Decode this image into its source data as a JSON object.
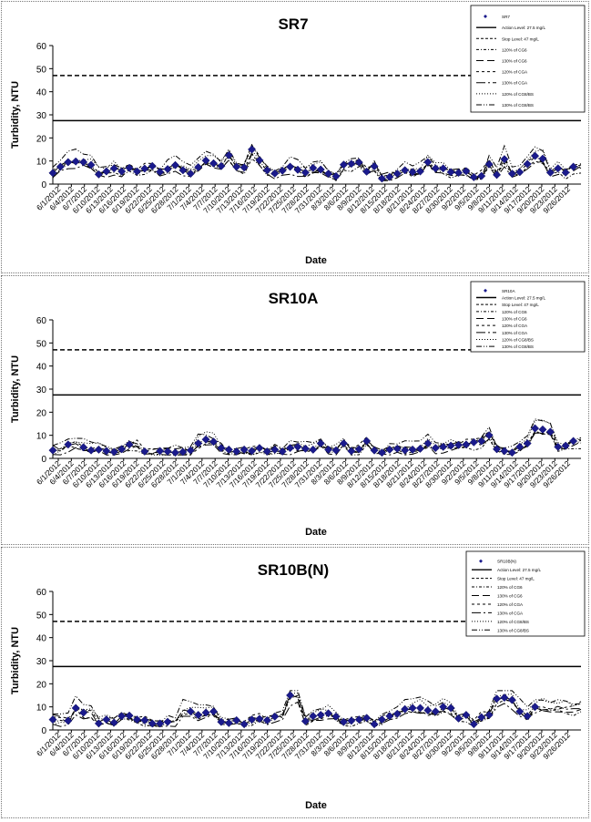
{
  "chart_data": [
    {
      "type": "line",
      "title": "SR7",
      "xlabel": "Date",
      "ylabel": "Turbidity, NTU",
      "ylim": [
        0,
        60
      ],
      "yticks": [
        0,
        10,
        20,
        30,
        40,
        50,
        60
      ],
      "grid": false,
      "legend_position": "top-right",
      "x_tick_labels": [
        "6/1/2012",
        "6/4/2012",
        "6/7/2012",
        "6/10/2012",
        "6/13/2012",
        "6/16/2012",
        "6/19/2012",
        "6/22/2012",
        "6/25/2012",
        "6/28/2012",
        "7/1/2012",
        "7/4/2012",
        "7/7/2012",
        "7/10/2012",
        "7/13/2012",
        "7/16/2012",
        "7/19/2012",
        "7/22/2012",
        "7/25/2012",
        "7/28/2012",
        "7/31/2012",
        "8/3/2012",
        "8/6/2012",
        "8/9/2012",
        "8/12/2012",
        "8/15/2012",
        "8/18/2012",
        "8/21/2012",
        "8/24/2012",
        "8/27/2012",
        "8/30/2012",
        "9/2/2012",
        "9/5/2012",
        "9/8/2012",
        "9/11/2012",
        "9/14/2012",
        "9/17/2012",
        "9/20/2012",
        "9/23/2012",
        "9/26/2012"
      ],
      "observed": {
        "name": "SR7",
        "points": [
          [
            0,
            4.8
          ],
          [
            1,
            7.5
          ],
          [
            2,
            9.5
          ],
          [
            3,
            9.8
          ],
          [
            4,
            9.5
          ],
          [
            5,
            8.3
          ],
          [
            6,
            4.2
          ],
          [
            7,
            5.5
          ],
          [
            8,
            6.8
          ],
          [
            9,
            5.5
          ],
          [
            10,
            7.0
          ],
          [
            11,
            5.5
          ],
          [
            12,
            6.7
          ],
          [
            13,
            7.8
          ],
          [
            14,
            5.3
          ],
          [
            15,
            6.5
          ],
          [
            16,
            8.2
          ],
          [
            17,
            6.0
          ],
          [
            18,
            4.5
          ],
          [
            19,
            7.3
          ],
          [
            20,
            10.2
          ],
          [
            21,
            9.0
          ],
          [
            22,
            7.8
          ],
          [
            23,
            12.5
          ],
          [
            24,
            7.5
          ],
          [
            25,
            7.2
          ],
          [
            26,
            15.0
          ],
          [
            27,
            10.3
          ],
          [
            28,
            6.0
          ],
          [
            29,
            4.6
          ],
          [
            30,
            5.8
          ],
          [
            31,
            7.5
          ],
          [
            32,
            6.2
          ],
          [
            33,
            5.0
          ],
          [
            34,
            7.0
          ],
          [
            35,
            6.3
          ],
          [
            36,
            4.5
          ],
          [
            37,
            3.4
          ],
          [
            38,
            8.4
          ],
          [
            39,
            8.8
          ],
          [
            40,
            9.4
          ],
          [
            41,
            5.4
          ],
          [
            42,
            7.7
          ],
          [
            43,
            2.4
          ],
          [
            44,
            3.1
          ],
          [
            45,
            4.5
          ],
          [
            46,
            6.0
          ],
          [
            47,
            5.2
          ],
          [
            48,
            5.5
          ],
          [
            49,
            9.5
          ],
          [
            50,
            6.8
          ],
          [
            51,
            6.8
          ],
          [
            52,
            5.2
          ],
          [
            53,
            4.9
          ],
          [
            54,
            5.6
          ],
          [
            55,
            3.0
          ],
          [
            56,
            3.5
          ],
          [
            57,
            8.6
          ],
          [
            58,
            4.0
          ],
          [
            59,
            10.8
          ],
          [
            60,
            4.5
          ],
          [
            61,
            5.2
          ],
          [
            62,
            8.7
          ],
          [
            63,
            12.2
          ],
          [
            64,
            11.0
          ],
          [
            65,
            5.0
          ],
          [
            66,
            6.8
          ],
          [
            67,
            5.0
          ],
          [
            68,
            7.5
          ]
        ]
      },
      "reference_lines": [
        {
          "name": "Action Level: 27.5 mg/L",
          "y": 27.5,
          "style": "solid"
        },
        {
          "name": "Stop Level: 47 mg/L",
          "y": 47,
          "style": "dashed"
        }
      ],
      "curve_names": [
        "120% of CG6",
        "130% of CG6",
        "120% of CGA",
        "130% of CGA",
        "120% of CG8/BS",
        "130% of CG8/BS"
      ]
    },
    {
      "type": "line",
      "title": "SR10A",
      "xlabel": "Date",
      "ylabel": "Turbidity, NTU",
      "ylim": [
        0,
        60
      ],
      "yticks": [
        0,
        10,
        20,
        30,
        40,
        50,
        60
      ],
      "grid": false,
      "legend_position": "top-right",
      "x_tick_labels": [
        "6/1/2012",
        "6/4/2012",
        "6/7/2012",
        "6/10/2012",
        "6/13/2012",
        "6/16/2012",
        "6/19/2012",
        "6/22/2012",
        "6/25/2012",
        "6/28/2012",
        "7/1/2012",
        "7/4/2012",
        "7/7/2012",
        "7/10/2012",
        "7/13/2012",
        "7/16/2012",
        "7/19/2012",
        "7/22/2012",
        "7/25/2012",
        "7/28/2012",
        "7/31/2012",
        "8/3/2012",
        "8/6/2012",
        "8/9/2012",
        "8/12/2012",
        "8/15/2012",
        "8/18/2012",
        "8/21/2012",
        "8/24/2012",
        "8/27/2012",
        "8/30/2012",
        "9/2/2012",
        "9/5/2012",
        "9/8/2012",
        "9/11/2012",
        "9/14/2012",
        "9/17/2012",
        "9/20/2012",
        "9/23/2012",
        "9/26/2012"
      ],
      "observed": {
        "name": "SR10A",
        "points": [
          [
            0,
            3.5
          ],
          [
            2,
            6.0
          ],
          [
            4,
            4.8
          ],
          [
            5,
            3.5
          ],
          [
            6,
            3.8
          ],
          [
            7,
            3.2
          ],
          [
            8,
            2.8
          ],
          [
            9,
            4.0
          ],
          [
            10,
            6.0
          ],
          [
            12,
            3.0
          ],
          [
            14,
            3.2
          ],
          [
            15,
            3.0
          ],
          [
            16,
            2.5
          ],
          [
            17,
            2.8
          ],
          [
            18,
            3.5
          ],
          [
            19,
            6.5
          ],
          [
            20,
            8.2
          ],
          [
            21,
            7.2
          ],
          [
            22,
            4.5
          ],
          [
            23,
            3.8
          ],
          [
            24,
            3.0
          ],
          [
            25,
            3.8
          ],
          [
            26,
            3.2
          ],
          [
            27,
            4.5
          ],
          [
            28,
            3.0
          ],
          [
            29,
            3.8
          ],
          [
            30,
            3.0
          ],
          [
            31,
            4.5
          ],
          [
            32,
            5.0
          ],
          [
            33,
            4.2
          ],
          [
            34,
            3.8
          ],
          [
            35,
            6.5
          ],
          [
            36,
            3.8
          ],
          [
            37,
            3.5
          ],
          [
            38,
            6.5
          ],
          [
            39,
            3.2
          ],
          [
            40,
            4.0
          ],
          [
            41,
            7.5
          ],
          [
            42,
            3.5
          ],
          [
            43,
            2.5
          ],
          [
            44,
            3.8
          ],
          [
            45,
            4.2
          ],
          [
            46,
            3.5
          ],
          [
            47,
            3.8
          ],
          [
            48,
            4.2
          ],
          [
            49,
            6.5
          ],
          [
            50,
            4.5
          ],
          [
            51,
            5.0
          ],
          [
            52,
            5.5
          ],
          [
            53,
            5.8
          ],
          [
            54,
            6.0
          ],
          [
            55,
            7.0
          ],
          [
            56,
            7.5
          ],
          [
            57,
            10.0
          ],
          [
            58,
            4.0
          ],
          [
            59,
            3.2
          ],
          [
            60,
            2.5
          ],
          [
            61,
            5.0
          ],
          [
            62,
            6.5
          ],
          [
            63,
            13.0
          ],
          [
            64,
            12.5
          ],
          [
            65,
            11.5
          ],
          [
            66,
            5.0
          ],
          [
            67,
            5.5
          ],
          [
            68,
            7.5
          ]
        ]
      },
      "reference_lines": [
        {
          "name": "Action Level: 27.5 mg/L",
          "y": 27.5,
          "style": "solid"
        },
        {
          "name": "Stop Level: 47 mg/L",
          "y": 47,
          "style": "dashed"
        }
      ],
      "curve_names": [
        "120% of CG6",
        "130% of CG6",
        "120% of CGA",
        "130% of CGA",
        "120% of CG8/BS",
        "130% of CG8/BS"
      ]
    },
    {
      "type": "line",
      "title": "SR10B(N)",
      "xlabel": "Date",
      "ylabel": "Turbidity, NTU",
      "ylim": [
        0,
        60
      ],
      "yticks": [
        0,
        10,
        20,
        30,
        40,
        50,
        60
      ],
      "grid": false,
      "legend_position": "top-right",
      "x_tick_labels": [
        "6/1/2012",
        "6/4/2012",
        "6/7/2012",
        "6/10/2012",
        "6/13/2012",
        "6/16/2012",
        "6/19/2012",
        "6/22/2012",
        "6/25/2012",
        "6/28/2012",
        "7/1/2012",
        "7/4/2012",
        "7/7/2012",
        "7/10/2012",
        "7/13/2012",
        "7/16/2012",
        "7/19/2012",
        "7/22/2012",
        "7/25/2012",
        "7/28/2012",
        "7/31/2012",
        "8/3/2012",
        "8/6/2012",
        "8/9/2012",
        "8/12/2012",
        "8/15/2012",
        "8/18/2012",
        "8/21/2012",
        "8/24/2012",
        "8/27/2012",
        "8/30/2012",
        "9/2/2012",
        "9/5/2012",
        "9/8/2012",
        "9/11/2012",
        "9/14/2012",
        "9/17/2012",
        "9/20/2012",
        "9/23/2012",
        "9/26/2012"
      ],
      "observed": {
        "name": "SR10B(N)",
        "points": [
          [
            0,
            4.5
          ],
          [
            2,
            4.0
          ],
          [
            3,
            9.5
          ],
          [
            4,
            7.5
          ],
          [
            6,
            2.8
          ],
          [
            7,
            4.5
          ],
          [
            8,
            3.2
          ],
          [
            9,
            6.0
          ],
          [
            10,
            6.2
          ],
          [
            11,
            4.5
          ],
          [
            12,
            4.2
          ],
          [
            13,
            2.8
          ],
          [
            14,
            2.8
          ],
          [
            15,
            3.5
          ],
          [
            18,
            8.0
          ],
          [
            19,
            6.5
          ],
          [
            20,
            7.5
          ],
          [
            21,
            8.0
          ],
          [
            22,
            3.5
          ],
          [
            23,
            3.0
          ],
          [
            24,
            4.2
          ],
          [
            25,
            2.5
          ],
          [
            26,
            4.5
          ],
          [
            27,
            4.8
          ],
          [
            28,
            4.2
          ],
          [
            29,
            5.8
          ],
          [
            31,
            15.0
          ],
          [
            33,
            3.8
          ],
          [
            34,
            6.0
          ],
          [
            35,
            6.5
          ],
          [
            36,
            7.2
          ],
          [
            37,
            5.8
          ],
          [
            38,
            3.5
          ],
          [
            39,
            4.0
          ],
          [
            40,
            4.5
          ],
          [
            41,
            5.2
          ],
          [
            42,
            2.5
          ],
          [
            43,
            4.5
          ],
          [
            44,
            6.0
          ],
          [
            45,
            7.0
          ],
          [
            46,
            9.0
          ],
          [
            47,
            9.5
          ],
          [
            48,
            9.5
          ],
          [
            49,
            8.5
          ],
          [
            50,
            8.0
          ],
          [
            51,
            10.0
          ],
          [
            52,
            9.5
          ],
          [
            53,
            5.0
          ],
          [
            54,
            6.5
          ],
          [
            55,
            2.5
          ],
          [
            56,
            5.5
          ],
          [
            57,
            6.5
          ],
          [
            58,
            13.5
          ],
          [
            59,
            14.0
          ],
          [
            60,
            13.0
          ],
          [
            61,
            8.0
          ],
          [
            62,
            6.0
          ],
          [
            63,
            10.0
          ]
        ]
      },
      "reference_lines": [
        {
          "name": "Action Level: 27.5 mg/L",
          "y": 27.5,
          "style": "solid"
        },
        {
          "name": "Stop Level: 47 mg/L",
          "y": 47,
          "style": "dashed"
        }
      ],
      "curve_names": [
        "120% of CG6",
        "130% of CG6",
        "120% of CGA",
        "130% of CGA",
        "120% of CG8/BS",
        "130% of CG8/BS"
      ]
    }
  ]
}
